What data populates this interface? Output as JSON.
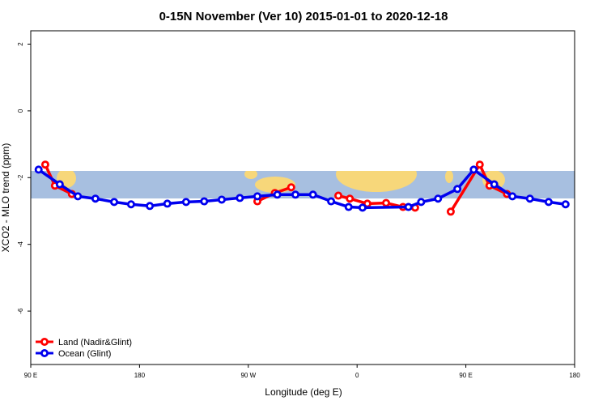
{
  "chart_data": {
    "type": "line",
    "title": "0-15N November (Ver 10)   2015-01-01 to 2020-12-18",
    "x_label": "Longitude (deg E)",
    "y_label": "XCO2 - MLO trend (ppm)",
    "xlim": [
      90,
      540
    ],
    "ylim": [
      -7.6,
      2.4
    ],
    "xticks": [
      {
        "value": 90,
        "label": "90 E"
      },
      {
        "value": 180,
        "label": "180"
      },
      {
        "value": 270,
        "label": "90 W"
      },
      {
        "value": 360,
        "label": "0"
      },
      {
        "value": 450,
        "label": "90 E"
      },
      {
        "value": 540,
        "label": "180"
      }
    ],
    "yticks": [
      2,
      0,
      -2,
      -4,
      -6
    ],
    "legend": "bottom-left",
    "series": [
      {
        "name": "Land (Nadir&Glint)",
        "color": "#ff0000",
        "x": [
          102,
          110,
          124,
          null,
          277.5,
          292,
          305.5,
          null,
          344.5,
          354,
          368.5,
          384,
          398,
          408,
          null,
          437.5,
          461.5,
          469.5,
          484
        ],
        "values": [
          -1.61,
          -2.24,
          -2.49,
          null,
          -2.71,
          -2.46,
          -2.29,
          null,
          -2.54,
          -2.63,
          -2.78,
          -2.76,
          -2.88,
          -2.9,
          null,
          -3.02,
          -1.61,
          -2.24,
          -2.49
        ]
      },
      {
        "name": "Ocean (Glint)",
        "color": "#0000ee",
        "x": [
          96.5,
          114,
          129,
          143.5,
          159,
          173,
          188.5,
          203,
          218.5,
          233.5,
          248,
          263,
          277.5,
          294,
          309,
          323.5,
          338.5,
          353,
          364.5,
          402.5,
          413,
          427,
          443,
          456.5,
          473.5,
          488.5,
          503,
          518.5,
          532.5
        ],
        "values": [
          -1.76,
          -2.2,
          -2.56,
          -2.63,
          -2.73,
          -2.8,
          -2.85,
          -2.78,
          -2.73,
          -2.71,
          -2.66,
          -2.61,
          -2.56,
          -2.51,
          -2.51,
          -2.51,
          -2.71,
          -2.88,
          -2.9,
          -2.88,
          -2.73,
          -2.63,
          -2.34,
          -1.76,
          -2.2,
          -2.56,
          -2.63,
          -2.73,
          -2.8
        ]
      }
    ]
  }
}
